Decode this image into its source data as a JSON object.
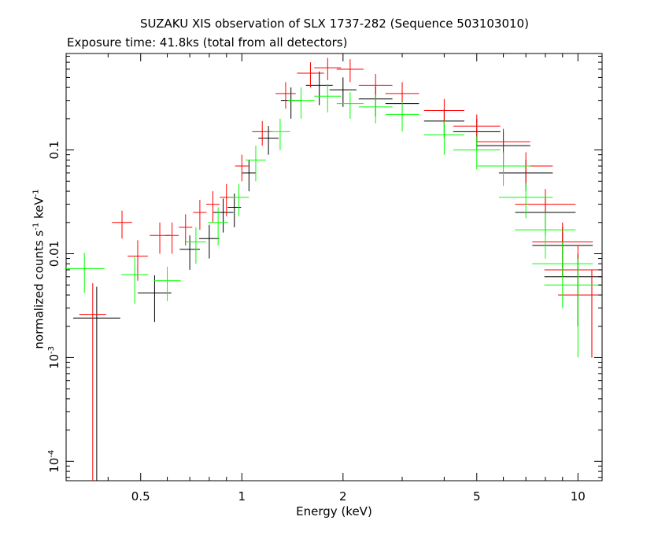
{
  "title": "SUZAKU XIS observation of SLX 1737-282 (Sequence 503103010)",
  "subtitle": "Exposure time: 41.8ks (total from all detectors)",
  "chart_data": {
    "type": "scatter",
    "title": "SUZAKU XIS observation of SLX 1737-282 (Sequence 503103010)",
    "subtitle": "Exposure time: 41.8ks (total from all detectors)",
    "xlabel": "Energy (keV)",
    "ylabel": {
      "base": "normalized counts s",
      "sup1": "-1",
      "mid": " keV",
      "sup2": "-1"
    },
    "x_scale": "log",
    "y_scale": "log",
    "xlim": [
      0.3,
      11.8
    ],
    "ylim": [
      6.5e-05,
      0.85
    ],
    "x_ticks": [
      {
        "value": 0.5,
        "label": "0.5"
      },
      {
        "value": 1,
        "label": "1"
      },
      {
        "value": 2,
        "label": "2"
      },
      {
        "value": 5,
        "label": "5"
      },
      {
        "value": 10,
        "label": "10"
      }
    ],
    "y_ticks": [
      {
        "value": 0.1,
        "label": "0.1"
      },
      {
        "value": 0.01,
        "label": "0.01"
      },
      {
        "value": 0.001,
        "label_base": "10",
        "label_sup": "-3"
      },
      {
        "value": 0.0001,
        "label_base": "10",
        "label_sup": "-4"
      }
    ],
    "grid": false,
    "legend": "none",
    "series": [
      {
        "color": "#000000",
        "points": [
          [
            0.37,
            0.0024,
            0.07,
            0.0024
          ],
          [
            0.55,
            0.0042,
            0.05,
            0.002
          ],
          [
            0.7,
            0.011,
            0.03,
            0.004
          ],
          [
            0.8,
            0.014,
            0.03,
            0.005
          ],
          [
            0.88,
            0.025,
            0.03,
            0.009
          ],
          [
            0.95,
            0.028,
            0.02,
            0.01
          ],
          [
            1.05,
            0.06,
            0.02,
            0.02
          ],
          [
            1.2,
            0.13,
            0.03,
            0.04
          ],
          [
            1.4,
            0.3,
            0.03,
            0.1
          ],
          [
            1.7,
            0.42,
            0.04,
            0.15
          ],
          [
            2.0,
            0.38,
            0.04,
            0.12
          ],
          [
            2.5,
            0.31,
            0.05,
            0.1
          ],
          [
            3.0,
            0.28,
            0.05,
            0.09
          ],
          [
            4.0,
            0.19,
            0.06,
            0.06
          ],
          [
            5.0,
            0.15,
            0.07,
            0.05
          ],
          [
            6.0,
            0.11,
            0.08,
            0.04
          ],
          [
            7.0,
            0.06,
            0.08,
            0.02
          ],
          [
            8.0,
            0.025,
            0.09,
            0.01
          ],
          [
            9.0,
            0.012,
            0.09,
            0.006
          ],
          [
            10.0,
            0.006,
            0.1,
            0.004
          ],
          [
            11.0,
            0.004,
            0.1,
            0.003
          ]
        ]
      },
      {
        "color": "#ff0000",
        "points": [
          [
            0.36,
            0.0026,
            0.04,
            0.0026
          ],
          [
            0.44,
            0.02,
            0.03,
            0.006
          ],
          [
            0.49,
            0.0095,
            0.03,
            0.004
          ],
          [
            0.57,
            0.015,
            0.03,
            0.005
          ],
          [
            0.62,
            0.015,
            0.02,
            0.005
          ],
          [
            0.68,
            0.018,
            0.02,
            0.006
          ],
          [
            0.75,
            0.025,
            0.02,
            0.008
          ],
          [
            0.82,
            0.03,
            0.02,
            0.01
          ],
          [
            0.9,
            0.035,
            0.02,
            0.012
          ],
          [
            1.0,
            0.07,
            0.02,
            0.02
          ],
          [
            1.15,
            0.15,
            0.03,
            0.04
          ],
          [
            1.35,
            0.35,
            0.03,
            0.1
          ],
          [
            1.6,
            0.55,
            0.04,
            0.15
          ],
          [
            1.8,
            0.62,
            0.04,
            0.15
          ],
          [
            2.1,
            0.6,
            0.04,
            0.15
          ],
          [
            2.5,
            0.42,
            0.05,
            0.12
          ],
          [
            3.0,
            0.35,
            0.05,
            0.1
          ],
          [
            4.0,
            0.24,
            0.06,
            0.07
          ],
          [
            5.0,
            0.17,
            0.07,
            0.05
          ],
          [
            6.0,
            0.12,
            0.08,
            0.04
          ],
          [
            7.0,
            0.07,
            0.08,
            0.025
          ],
          [
            8.0,
            0.03,
            0.09,
            0.012
          ],
          [
            9.0,
            0.013,
            0.09,
            0.007
          ],
          [
            10.0,
            0.007,
            0.1,
            0.005
          ],
          [
            11.0,
            0.004,
            0.1,
            0.003
          ]
        ]
      },
      {
        "color": "#00ff00",
        "points": [
          [
            0.34,
            0.0072,
            0.06,
            0.003
          ],
          [
            0.48,
            0.0063,
            0.04,
            0.003
          ],
          [
            0.6,
            0.0055,
            0.04,
            0.002
          ],
          [
            0.73,
            0.013,
            0.03,
            0.005
          ],
          [
            0.85,
            0.02,
            0.03,
            0.008
          ],
          [
            0.98,
            0.035,
            0.03,
            0.012
          ],
          [
            1.1,
            0.08,
            0.03,
            0.03
          ],
          [
            1.3,
            0.15,
            0.03,
            0.05
          ],
          [
            1.5,
            0.3,
            0.04,
            0.1
          ],
          [
            1.8,
            0.33,
            0.04,
            0.1
          ],
          [
            2.1,
            0.28,
            0.04,
            0.08
          ],
          [
            2.5,
            0.26,
            0.05,
            0.08
          ],
          [
            3.0,
            0.22,
            0.05,
            0.07
          ],
          [
            4.0,
            0.14,
            0.06,
            0.05
          ],
          [
            5.0,
            0.1,
            0.07,
            0.035
          ],
          [
            6.0,
            0.07,
            0.08,
            0.025
          ],
          [
            7.0,
            0.035,
            0.08,
            0.013
          ],
          [
            8.0,
            0.017,
            0.09,
            0.008
          ],
          [
            9.0,
            0.008,
            0.09,
            0.005
          ],
          [
            10.0,
            0.005,
            0.1,
            0.004
          ]
        ]
      }
    ]
  }
}
